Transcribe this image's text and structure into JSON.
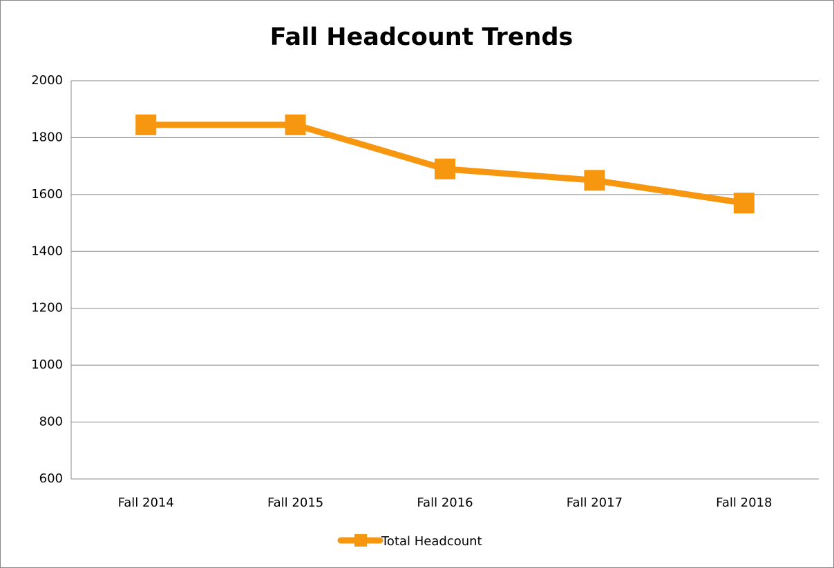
{
  "chart_data": {
    "type": "line",
    "title": "Fall Headcount Trends",
    "categories": [
      "Fall 2014",
      "Fall 2015",
      "Fall 2016",
      "Fall 2017",
      "Fall 2018"
    ],
    "series": [
      {
        "name": "Total Headcount",
        "color": "#f7960f",
        "values": [
          1845,
          1845,
          1690,
          1650,
          1570
        ]
      }
    ],
    "ylim": [
      600,
      2000
    ],
    "yticks": [
      600,
      800,
      1000,
      1200,
      1400,
      1600,
      1800,
      2000
    ],
    "grid": true,
    "legend": "bottom"
  }
}
